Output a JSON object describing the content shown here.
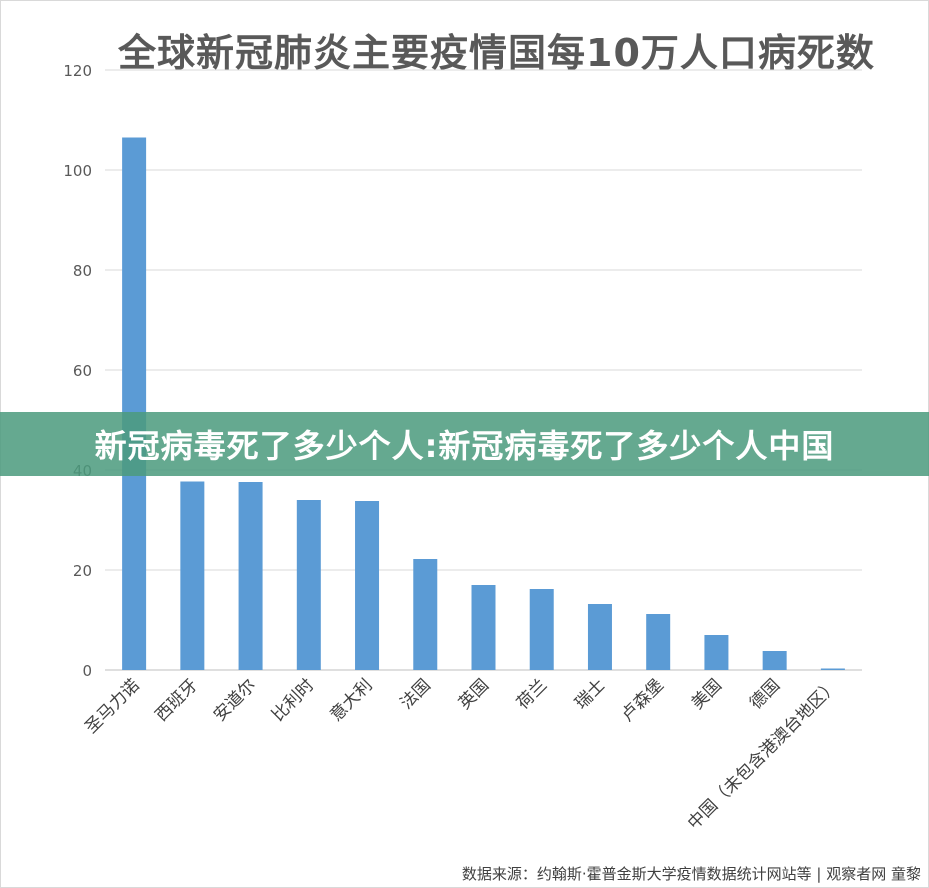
{
  "chart_data": {
    "type": "bar",
    "title": "全球新冠肺炎主要疫情国每10万人口病死数",
    "categories": [
      "圣马力诺",
      "西班牙",
      "安道尔",
      "比利时",
      "意大利",
      "法国",
      "英国",
      "荷兰",
      "瑞士",
      "卢森堡",
      "美国",
      "德国",
      "中国（未包含港澳台地区）"
    ],
    "values": [
      106.5,
      37.7,
      37.6,
      34.0,
      33.8,
      22.2,
      17.0,
      16.2,
      13.2,
      11.2,
      7.0,
      3.8,
      0.3
    ],
    "ylim": [
      0,
      120
    ],
    "yticks": [
      0,
      20,
      40,
      60,
      80,
      100,
      120
    ],
    "grid": true,
    "bar_color": "#5b9bd5",
    "xlabel": "",
    "ylabel": ""
  },
  "banner": {
    "text": "新冠病毒死了多少个人:新冠病毒死了多少个人中国",
    "color": "#4c9b7e"
  },
  "source": "数据来源：约翰斯·霍普金斯大学疫情数据统计网站等 | 观察者网 童黎"
}
